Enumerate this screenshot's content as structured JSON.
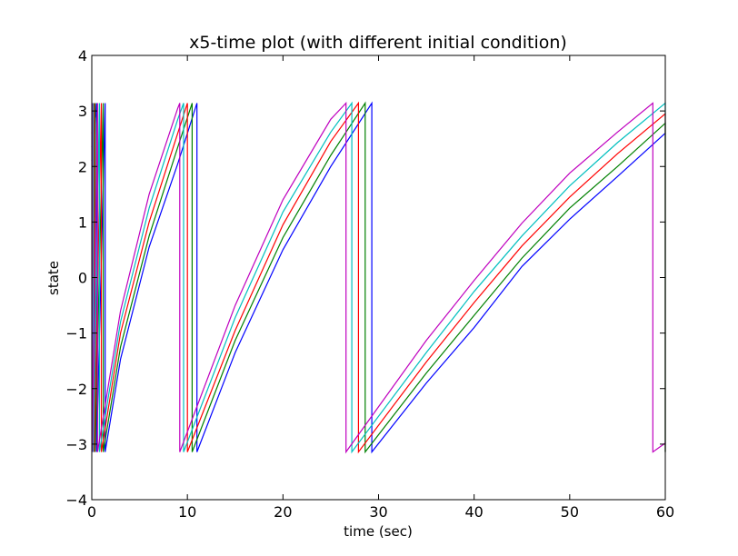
{
  "chart_data": {
    "type": "line",
    "title": "x5-time plot (with different initial condition)",
    "xlabel": "time (sec)",
    "ylabel": "state",
    "xlim": [
      0,
      60
    ],
    "ylim": [
      -4,
      4
    ],
    "xticks": [
      "0",
      "10",
      "20",
      "30",
      "40",
      "50",
      "60"
    ],
    "yticks": [
      "4",
      "3",
      "2",
      "1",
      "0",
      "−1",
      "−2",
      "−3",
      "−4"
    ],
    "grid": false,
    "legend": "none",
    "series": [
      {
        "color": "#0000ff",
        "points": [
          [
            0,
            2.1
          ],
          [
            0.5,
            3.1416
          ],
          [
            0.5,
            -3.1416
          ],
          [
            1.4,
            3.1416
          ],
          [
            1.4,
            -3.1416
          ],
          [
            3,
            -1.47
          ],
          [
            6,
            0.55
          ],
          [
            9,
            2.05
          ],
          [
            11.0,
            3.1416
          ],
          [
            11.0,
            -3.1416
          ],
          [
            15,
            -1.35
          ],
          [
            20,
            0.5
          ],
          [
            25,
            2.0
          ],
          [
            29.3,
            3.1416
          ],
          [
            29.3,
            -3.1416
          ],
          [
            35,
            -1.9
          ],
          [
            40,
            -0.9
          ],
          [
            45,
            0.2
          ],
          [
            50,
            1.05
          ],
          [
            55,
            1.82
          ],
          [
            60,
            2.6
          ]
        ]
      },
      {
        "color": "#008000",
        "points": [
          [
            0,
            2.35
          ],
          [
            0.35,
            3.1416
          ],
          [
            0.35,
            -3.1416
          ],
          [
            1.2,
            3.1416
          ],
          [
            1.2,
            -3.1416
          ],
          [
            3,
            -1.25
          ],
          [
            6,
            0.75
          ],
          [
            9,
            2.35
          ],
          [
            10.5,
            3.1416
          ],
          [
            10.5,
            -3.1416
          ],
          [
            15,
            -1.13
          ],
          [
            20,
            0.72
          ],
          [
            25,
            2.2
          ],
          [
            28.6,
            3.1416
          ],
          [
            28.6,
            -3.1416
          ],
          [
            35,
            -1.72
          ],
          [
            40,
            -0.68
          ],
          [
            45,
            0.35
          ],
          [
            50,
            1.25
          ],
          [
            55,
            2.0
          ],
          [
            60,
            2.78
          ],
          [
            60,
            -3.1416
          ]
        ]
      },
      {
        "color": "#ff0000",
        "points": [
          [
            0,
            2.6
          ],
          [
            0.25,
            3.1416
          ],
          [
            0.25,
            -3.1416
          ],
          [
            1.0,
            3.1416
          ],
          [
            1.0,
            -3.1416
          ],
          [
            3,
            -1.0
          ],
          [
            6,
            1.0
          ],
          [
            9,
            2.6
          ],
          [
            10.0,
            3.1416
          ],
          [
            10.0,
            -3.1416
          ],
          [
            15,
            -0.95
          ],
          [
            20,
            0.95
          ],
          [
            25,
            2.45
          ],
          [
            27.9,
            3.1416
          ],
          [
            27.9,
            -3.1416
          ],
          [
            35,
            -1.52
          ],
          [
            40,
            -0.45
          ],
          [
            45,
            0.57
          ],
          [
            50,
            1.45
          ],
          [
            55,
            2.23
          ],
          [
            60,
            2.95
          ],
          [
            60,
            -3.1416
          ]
        ]
      },
      {
        "color": "#00bfbf",
        "points": [
          [
            0,
            2.85
          ],
          [
            0.15,
            3.1416
          ],
          [
            0.15,
            -3.1416
          ],
          [
            0.8,
            3.1416
          ],
          [
            0.8,
            -3.1416
          ],
          [
            3,
            -0.8
          ],
          [
            6,
            1.25
          ],
          [
            9,
            2.85
          ],
          [
            9.6,
            3.1416
          ],
          [
            9.6,
            -3.1416
          ],
          [
            15,
            -0.72
          ],
          [
            20,
            1.18
          ],
          [
            25,
            2.62
          ],
          [
            27.2,
            3.1416
          ],
          [
            27.2,
            -3.1416
          ],
          [
            35,
            -1.35
          ],
          [
            40,
            -0.25
          ],
          [
            45,
            0.75
          ],
          [
            50,
            1.65
          ],
          [
            55,
            2.43
          ],
          [
            60,
            3.1416
          ],
          [
            60,
            -3.1416
          ]
        ]
      },
      {
        "color": "#bf00bf",
        "points": [
          [
            0,
            3.1
          ],
          [
            0.05,
            3.1416
          ],
          [
            0.05,
            -3.1416
          ],
          [
            0.6,
            3.1416
          ],
          [
            0.6,
            -3.1416
          ],
          [
            3,
            -0.6
          ],
          [
            6,
            1.5
          ],
          [
            9,
            3.05
          ],
          [
            9.2,
            3.1416
          ],
          [
            9.2,
            -3.1416
          ],
          [
            15,
            -0.5
          ],
          [
            20,
            1.4
          ],
          [
            25,
            2.85
          ],
          [
            26.6,
            3.1416
          ],
          [
            26.6,
            -3.1416
          ],
          [
            35,
            -1.13
          ],
          [
            40,
            -0.05
          ],
          [
            45,
            0.98
          ],
          [
            50,
            1.88
          ],
          [
            55,
            2.62
          ],
          [
            58.7,
            3.1416
          ],
          [
            58.7,
            -3.1416
          ],
          [
            60,
            -2.98
          ]
        ]
      }
    ]
  }
}
